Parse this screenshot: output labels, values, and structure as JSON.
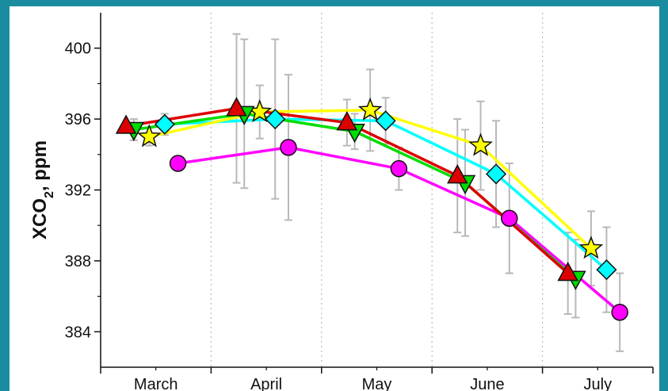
{
  "chart_data": {
    "type": "line",
    "ylabel": "XCO₂, ppm",
    "ylabel_main": "XCO",
    "ylabel_sub": "2",
    "ylabel_rest": ", ppm",
    "categories": [
      "March",
      "April",
      "May",
      "June",
      "July"
    ],
    "ylim": [
      382,
      402
    ],
    "yticks": [
      384,
      388,
      392,
      396,
      400
    ],
    "yticklabels": [
      "384",
      "388",
      "392",
      "396",
      "400"
    ],
    "grid": "vertical dotted lines between months",
    "series": [
      {
        "color": "#ff00ff",
        "marker": "circle",
        "x": [
          0.2,
          1.2,
          2.2,
          3.2,
          4.2
        ],
        "values": [
          393.5,
          394.4,
          393.2,
          390.4,
          385.1
        ],
        "err": [
          0.0,
          4.1,
          1.2,
          3.1,
          2.2
        ]
      },
      {
        "color": "#00ffff",
        "marker": "diamond",
        "x": [
          0.08,
          1.08,
          2.08,
          3.08,
          4.08
        ],
        "values": [
          395.7,
          396.0,
          395.9,
          392.9,
          387.5
        ],
        "err": [
          0.6,
          4.5,
          1.3,
          3.0,
          2.4
        ]
      },
      {
        "color": "#ffff00",
        "marker": "star",
        "x": [
          -0.06,
          0.94,
          1.94,
          2.94,
          3.94
        ],
        "values": [
          395.0,
          396.4,
          396.5,
          394.5,
          388.7
        ],
        "err": [
          0.5,
          1.5,
          2.3,
          2.5,
          2.1
        ]
      },
      {
        "color": "#00dd00",
        "marker": "triangle-down",
        "x": [
          -0.2,
          0.8,
          1.8,
          2.8,
          3.8
        ],
        "values": [
          395.4,
          396.3,
          395.3,
          392.4,
          387.0
        ],
        "err": [
          0.6,
          4.2,
          1.0,
          3.0,
          2.2
        ]
      },
      {
        "color": "#dd0000",
        "marker": "triangle-up",
        "x": [
          -0.27,
          0.73,
          1.73,
          2.73,
          3.73
        ],
        "values": [
          395.6,
          396.6,
          395.8,
          392.8,
          387.3
        ],
        "err": [
          0.0,
          4.2,
          1.3,
          3.2,
          2.3
        ]
      }
    ]
  }
}
